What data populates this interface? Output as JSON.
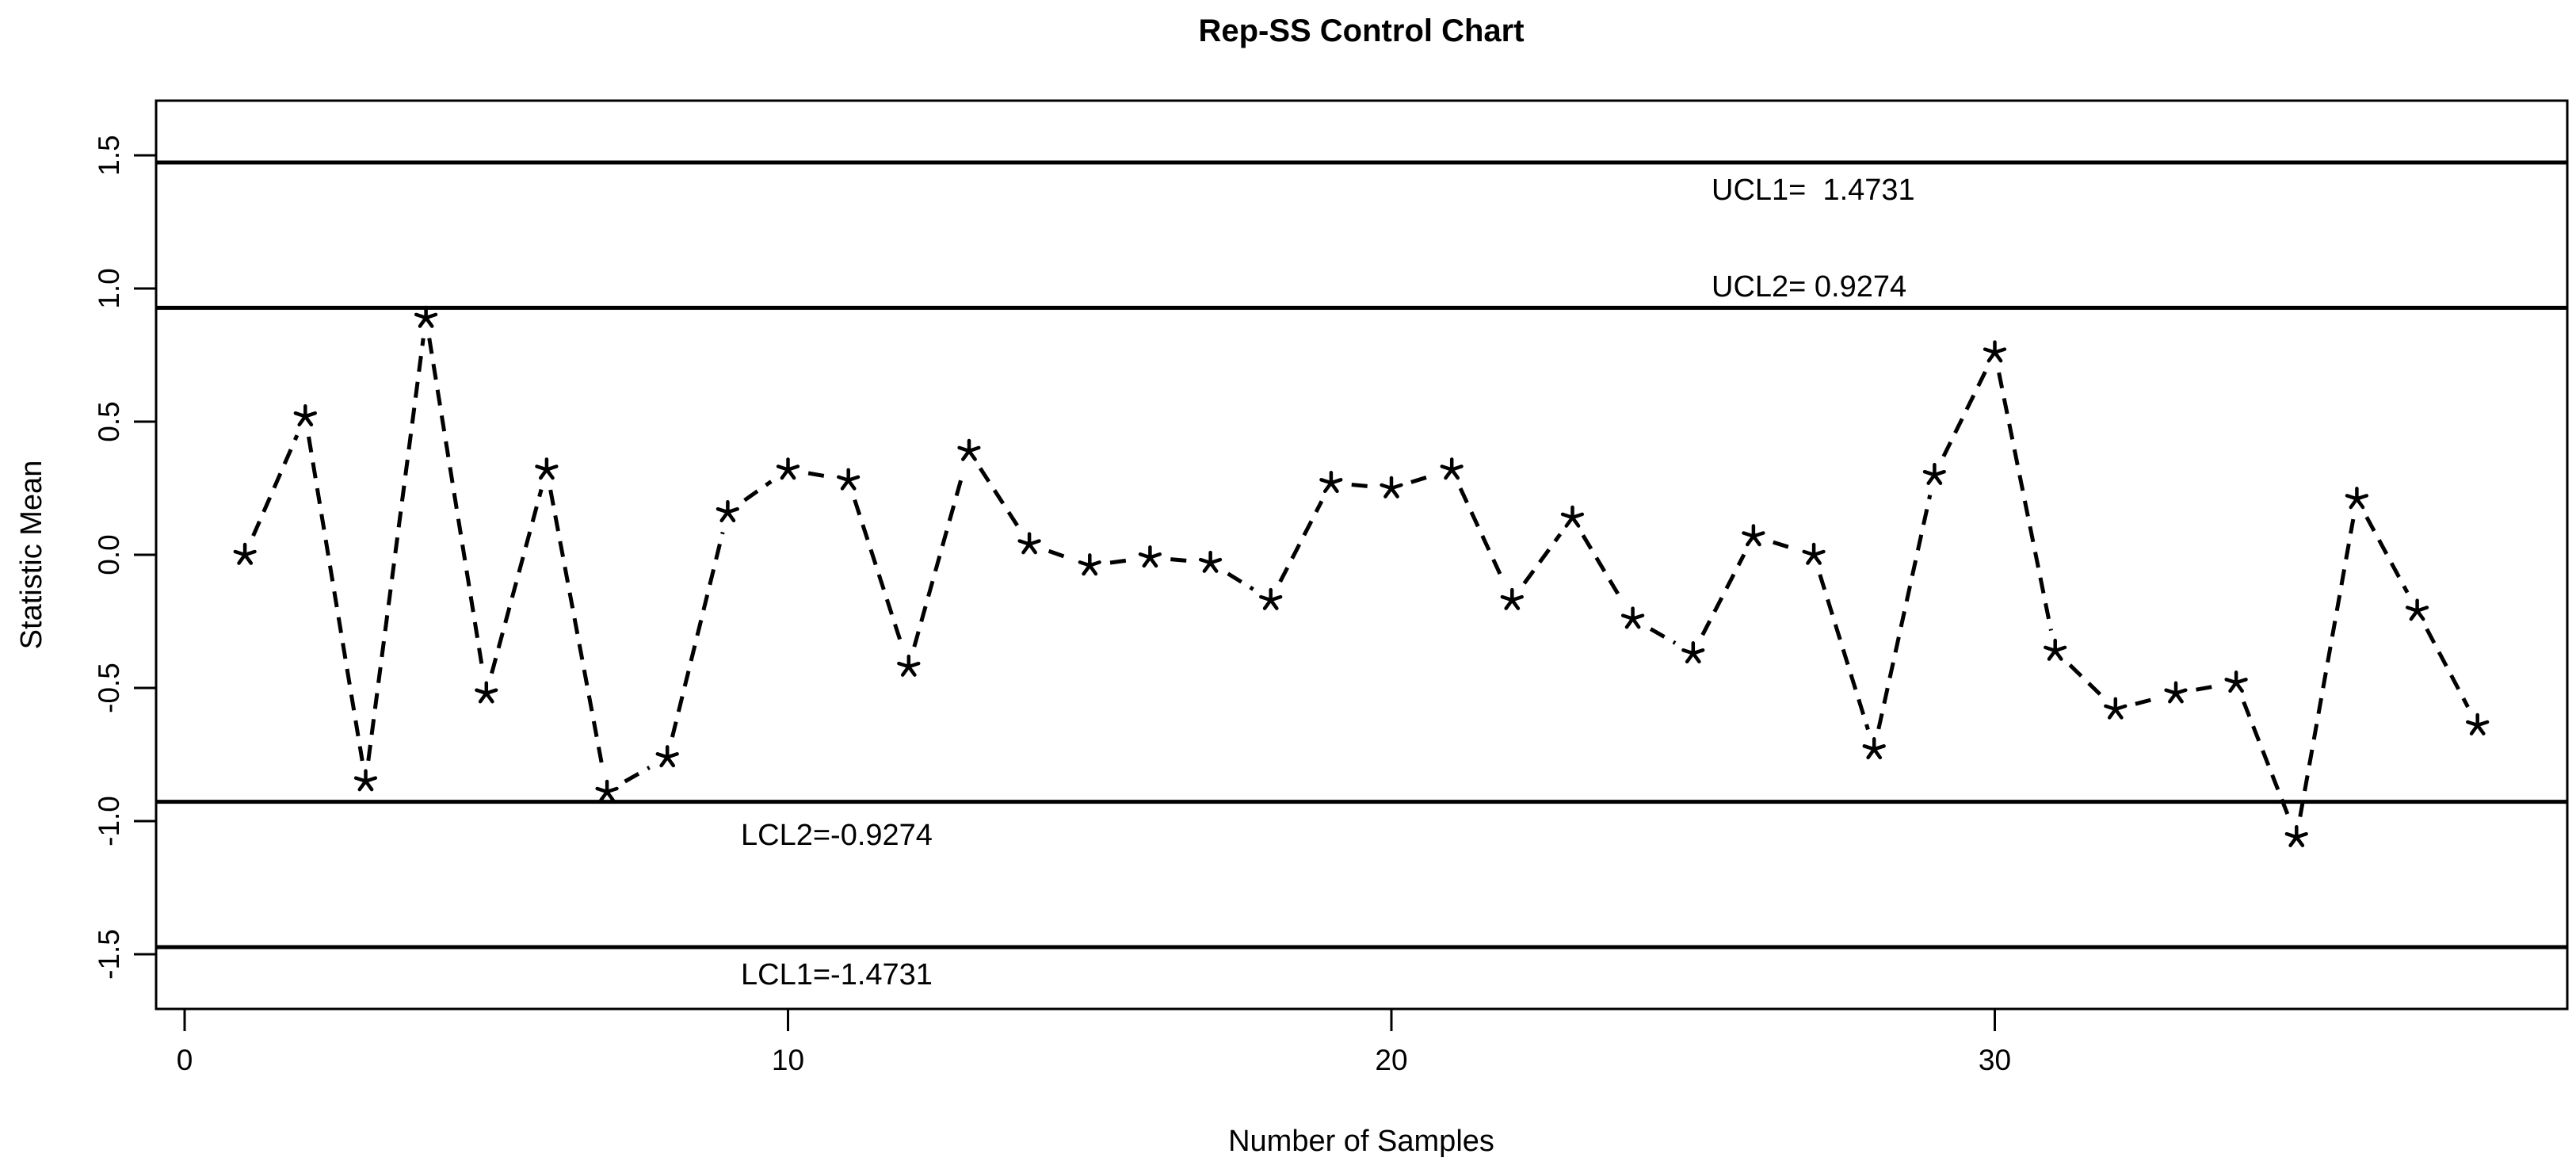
{
  "title": "Rep-SS Control Chart",
  "chart_data": {
    "type": "line",
    "title": "Rep-SS Control Chart",
    "xlabel": "Number of Samples",
    "ylabel": "Statistic Mean",
    "marker": "asterisk",
    "line_style": "dashed",
    "grid": false,
    "legend": "none",
    "xlim": [
      -0.5,
      39.5
    ],
    "ylim": [
      -1.705,
      1.705
    ],
    "xticks": [
      0,
      10,
      20,
      30
    ],
    "xtick_labels": [
      "0",
      "10",
      "20",
      "30"
    ],
    "yticks": [
      1.5,
      1.0,
      0.5,
      0.0,
      -0.5,
      -1.0,
      -1.5
    ],
    "ytick_labels": [
      "1.5",
      "1.0",
      "0.5",
      "0.0",
      "-0.5",
      "-1.0",
      "-1.5"
    ],
    "x": [
      1,
      2,
      3,
      4,
      5,
      6,
      7,
      8,
      9,
      10,
      11,
      12,
      13,
      14,
      15,
      16,
      17,
      18,
      19,
      20,
      21,
      22,
      23,
      24,
      25,
      26,
      27,
      28,
      29,
      30,
      31,
      32,
      33,
      34,
      35,
      36,
      37,
      38
    ],
    "values": [
      0.0,
      0.52,
      -0.85,
      0.89,
      -0.52,
      0.32,
      -0.89,
      -0.76,
      0.16,
      0.32,
      0.28,
      -0.42,
      0.39,
      0.04,
      -0.04,
      -0.01,
      -0.03,
      -0.17,
      0.27,
      0.25,
      0.32,
      -0.17,
      0.14,
      -0.24,
      -0.37,
      0.07,
      0.0,
      -0.73,
      0.3,
      0.76,
      -0.36,
      -0.58,
      -0.52,
      -0.48,
      -1.06,
      0.21,
      -0.21,
      -0.64
    ],
    "control_limits": [
      {
        "name": "UCL1",
        "label": "UCL1=  1.4731",
        "value": 1.4731,
        "label_position": "below-right"
      },
      {
        "name": "UCL2",
        "label": "UCL2= 0.9274",
        "value": 0.9274,
        "label_position": "above-right"
      },
      {
        "name": "LCL2",
        "label": "LCL2=-0.9274",
        "value": -0.9274,
        "label_position": "below-left"
      },
      {
        "name": "LCL1",
        "label": "LCL1=-1.4731",
        "value": -1.4731,
        "label_position": "below-left"
      }
    ],
    "colors": {
      "foreground": "#000000",
      "background": "#ffffff"
    }
  }
}
